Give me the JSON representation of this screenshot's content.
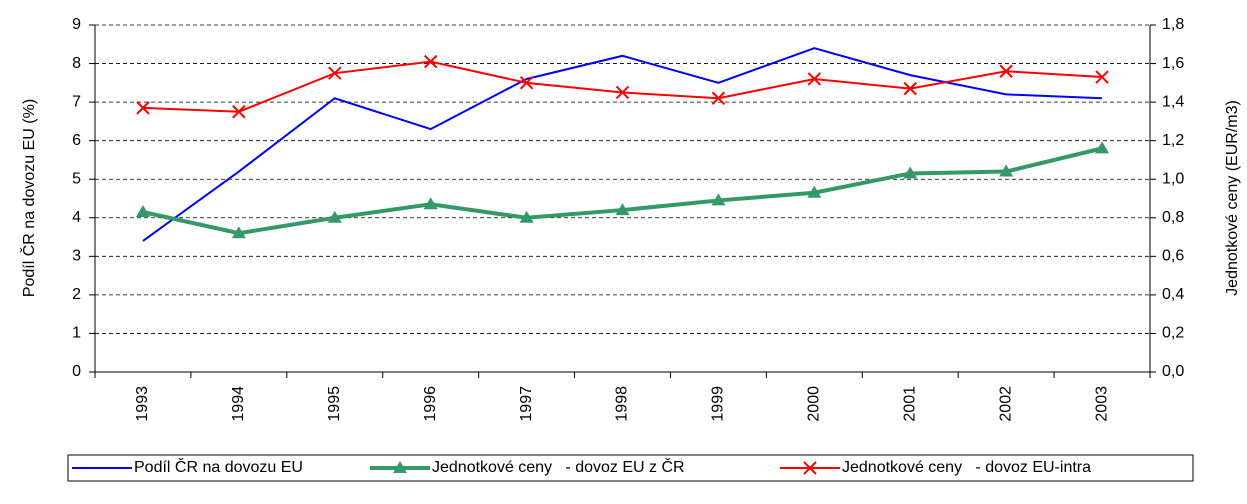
{
  "chart_data": {
    "type": "line",
    "categories": [
      "1993",
      "1994",
      "1995",
      "1996",
      "1997",
      "1998",
      "1999",
      "2000",
      "2001",
      "2002",
      "2003"
    ],
    "y_label": "Podíl ČR na dovozu EU (%)",
    "y2_label": "Jednotkové ceny (EUR/m3)",
    "ylim": [
      0,
      9
    ],
    "yticks": [
      0,
      1,
      2,
      3,
      4,
      5,
      6,
      7,
      8,
      9
    ],
    "y2lim": [
      0,
      1.8
    ],
    "y2ticks": [
      {
        "value": 0,
        "label": "0,0"
      },
      {
        "value": 0.2,
        "label": "0,2"
      },
      {
        "value": 0.4,
        "label": "0,4"
      },
      {
        "value": 0.6,
        "label": "0,6"
      },
      {
        "value": 0.8,
        "label": "0,8"
      },
      {
        "value": 1.0,
        "label": "1,0"
      },
      {
        "value": 1.2,
        "label": "1,2"
      },
      {
        "value": 1.4,
        "label": "1,4"
      },
      {
        "value": 1.6,
        "label": "1,6"
      },
      {
        "value": 1.8,
        "label": "1,8"
      }
    ],
    "grid": true,
    "legend": "bottom",
    "series": [
      {
        "name": "Podíl ČR na dovozu EU",
        "color": "#0000ff",
        "marker": "none",
        "values": [
          3.4,
          5.2,
          7.1,
          6.3,
          7.6,
          8.2,
          7.5,
          8.4,
          7.7,
          7.2,
          7.1
        ]
      },
      {
        "name": "Jednotkové ceny   - dovoz EU z ČR",
        "color": "#339966",
        "marker": "triangle",
        "axis": "y2",
        "values": [
          0.83,
          0.72,
          0.8,
          0.87,
          0.8,
          0.84,
          0.89,
          0.93,
          1.03,
          1.04,
          1.16
        ]
      },
      {
        "name": "Jednotkové ceny   - dovoz EU-intra",
        "color": "#ff0000",
        "marker": "x",
        "axis": "y2",
        "values": [
          1.37,
          1.35,
          1.55,
          1.61,
          1.5,
          1.45,
          1.42,
          1.52,
          1.47,
          1.56,
          1.53
        ]
      }
    ]
  }
}
